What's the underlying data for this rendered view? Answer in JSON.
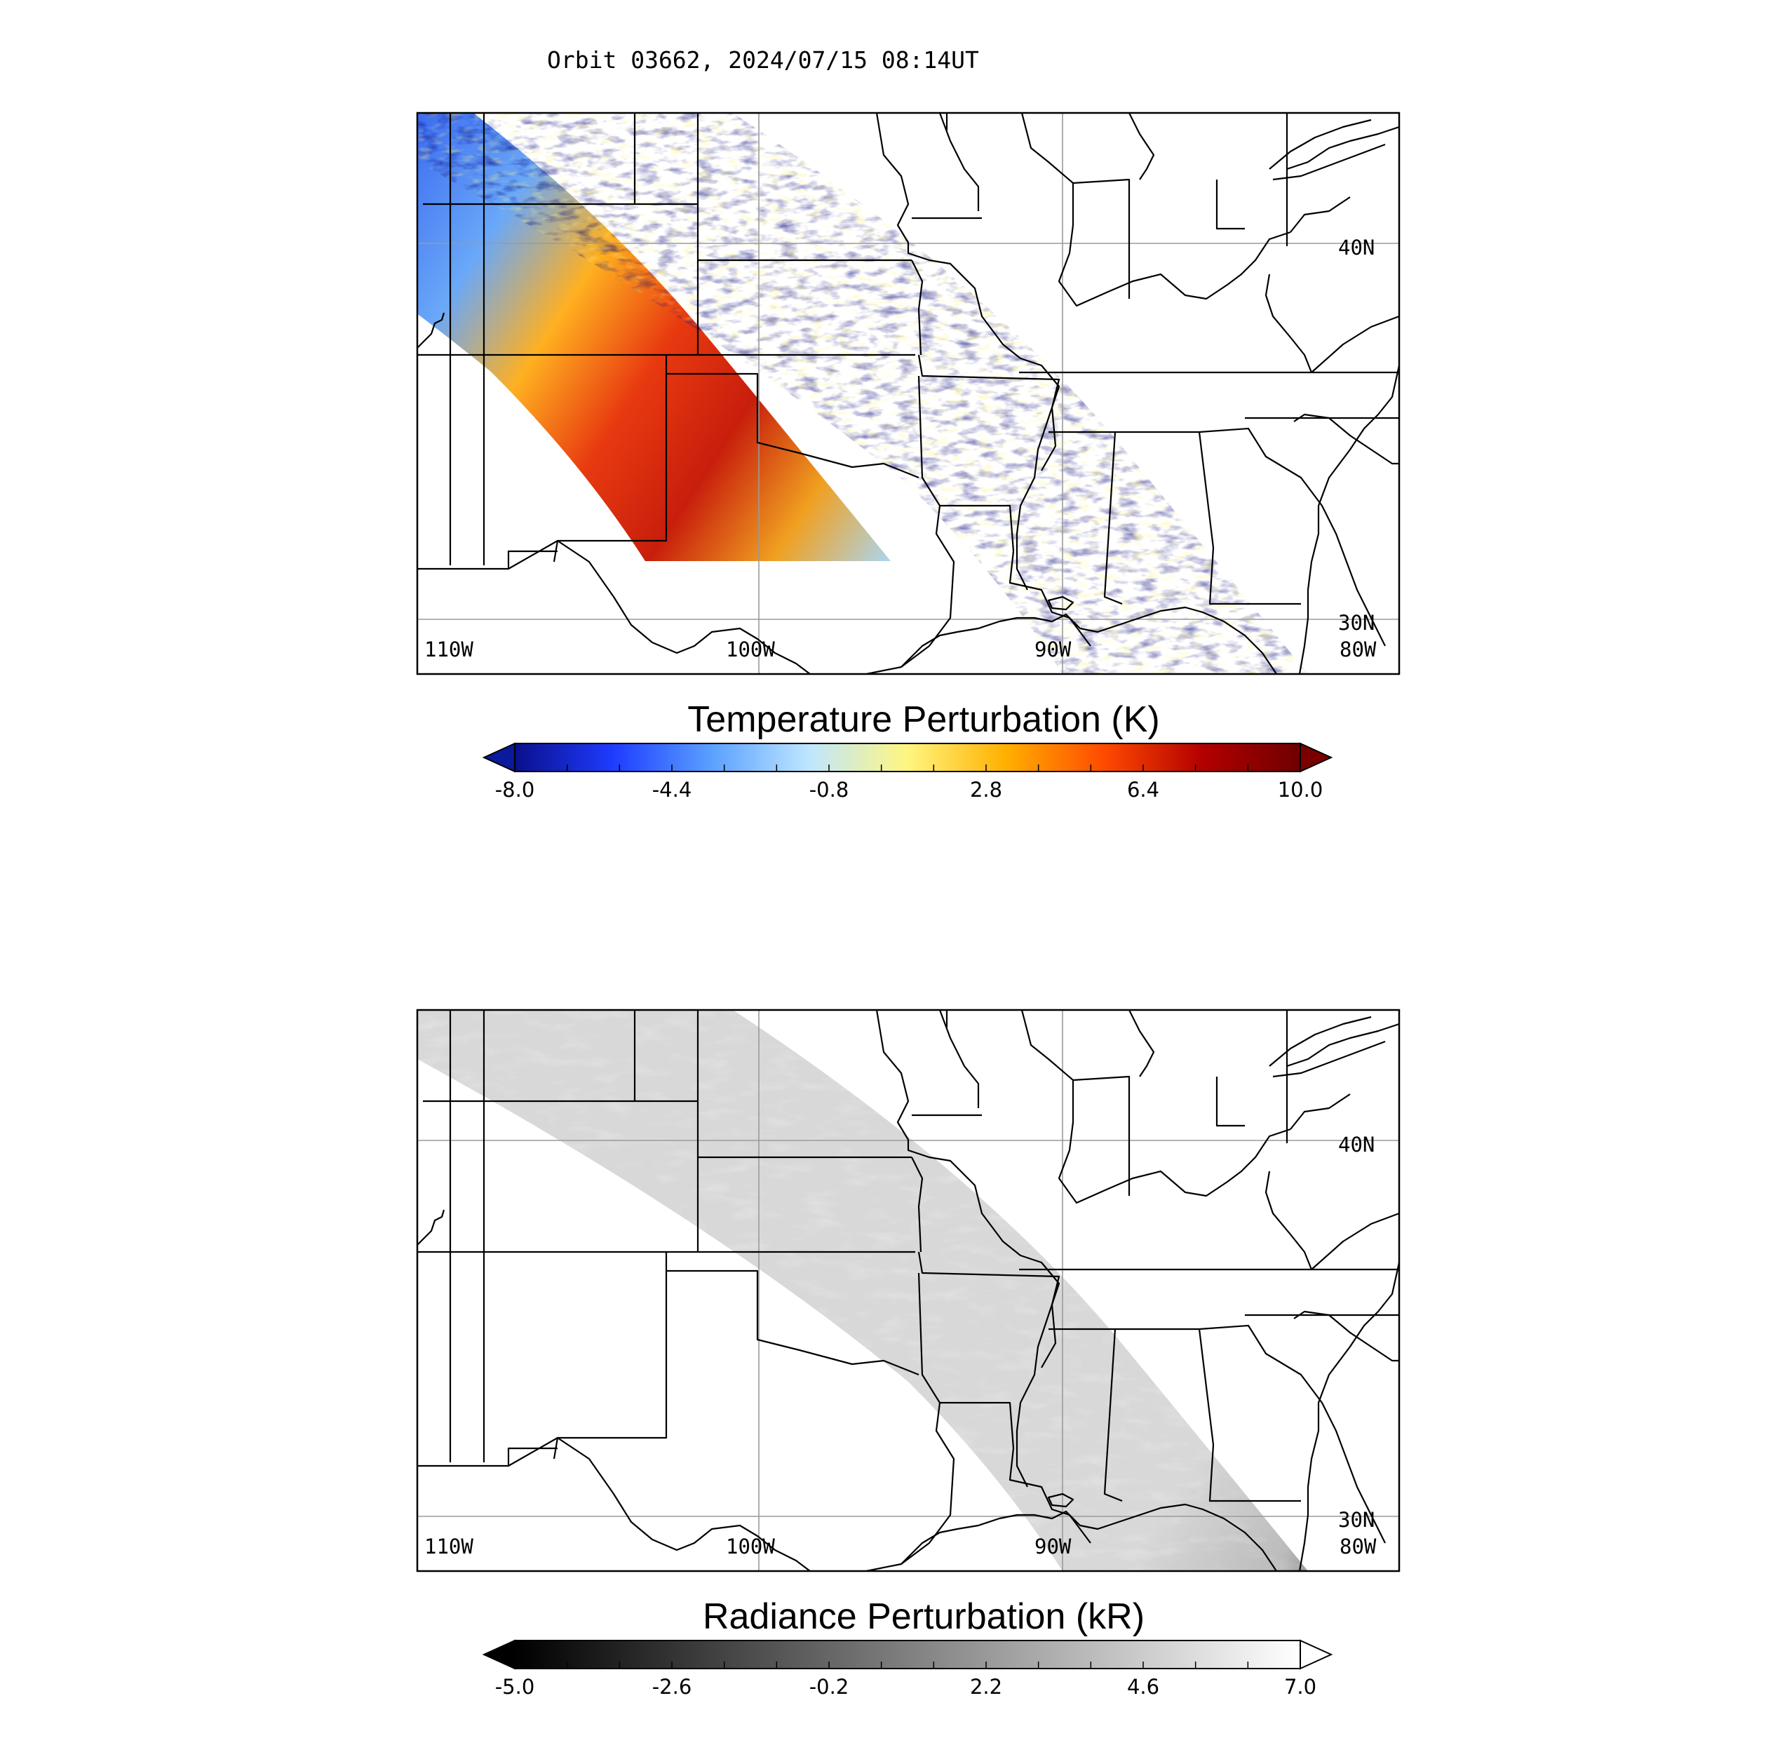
{
  "header": {
    "title": "Orbit 03662, 2024/07/15 08:14UT"
  },
  "panels": [
    {
      "id": "temperature",
      "colorbar": {
        "title": "Temperature Perturbation (K)",
        "ticks": [
          "-8.0",
          "-4.4",
          "-0.8",
          "2.8",
          "6.4",
          "10.0"
        ],
        "min": -8.0,
        "max": 10.0,
        "colors": [
          "#0a0f8c",
          "#1e3cff",
          "#5aa0ff",
          "#bfe6ff",
          "#fff680",
          "#ffb000",
          "#ff4a00",
          "#b30000",
          "#6e0000"
        ],
        "under_color": "#0a1a9c",
        "over_color": "#7a0000"
      },
      "map": {
        "lat_labels": [
          "40N",
          "30N"
        ],
        "lon_labels": [
          "110W",
          "100W",
          "90W",
          "80W"
        ]
      }
    },
    {
      "id": "radiance",
      "colorbar": {
        "title": "Radiance Perturbation (kR)",
        "ticks": [
          "-5.0",
          "-2.6",
          "-0.2",
          "2.2",
          "4.6",
          "7.0"
        ],
        "min": -5.0,
        "max": 7.0,
        "colors": [
          "#000000",
          "#555555",
          "#aaaaaa",
          "#ffffff"
        ],
        "under_color": "#000000",
        "over_color": "#ffffff"
      },
      "map": {
        "lat_labels": [
          "40N",
          "30N"
        ],
        "lon_labels": [
          "110W",
          "100W",
          "90W",
          "80W"
        ]
      }
    }
  ]
}
